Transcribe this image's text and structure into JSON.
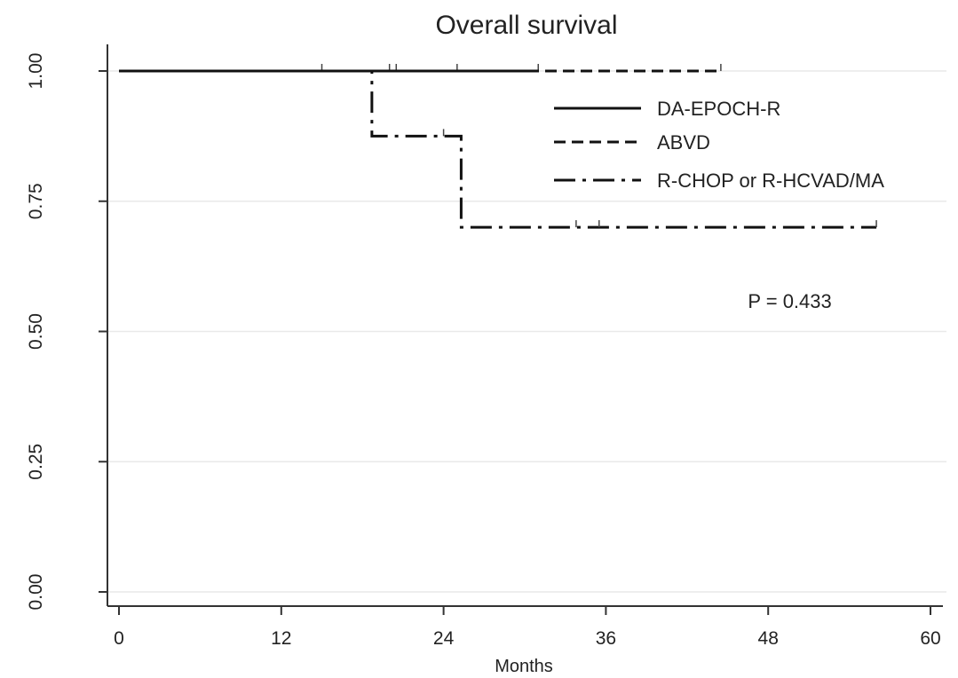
{
  "chart_data": {
    "type": "line",
    "title": "Overall survival",
    "xlabel": "Months",
    "ylabel": "",
    "xlim": [
      0,
      60
    ],
    "ylim": [
      0,
      1
    ],
    "x_ticks": [
      0,
      12,
      24,
      36,
      48,
      60
    ],
    "y_ticks": [
      0.0,
      0.25,
      0.5,
      0.75,
      1.0
    ],
    "x_tick_labels": [
      "0",
      "12",
      "24",
      "36",
      "48",
      "60"
    ],
    "y_tick_labels": [
      "0.00",
      "0.25",
      "0.50",
      "0.75",
      "1.00"
    ],
    "grid": true,
    "legend_position": "top-right",
    "series": [
      {
        "name": "DA-EPOCH-R",
        "style": "solid",
        "points": [
          [
            0,
            1.0
          ],
          [
            31,
            1.0
          ]
        ],
        "censor_times": [
          15,
          20,
          20.5,
          25,
          31
        ]
      },
      {
        "name": "ABVD",
        "style": "dashed",
        "points": [
          [
            0,
            1.0
          ],
          [
            44.5,
            1.0
          ]
        ],
        "censor_times": [
          44.5
        ]
      },
      {
        "name": "R-CHOP or R-HCVAD/MA",
        "style": "dashdot",
        "points": [
          [
            0,
            1.0
          ],
          [
            18.7,
            1.0
          ],
          [
            18.7,
            0.875
          ],
          [
            25.3,
            0.875
          ],
          [
            25.3,
            0.7
          ],
          [
            56,
            0.7
          ]
        ],
        "censor_times": [
          24,
          33.8,
          35.5,
          56
        ]
      }
    ],
    "annotations": [
      {
        "text": "P = 0.433",
        "x": 46.5,
        "y": 0.545
      }
    ]
  }
}
